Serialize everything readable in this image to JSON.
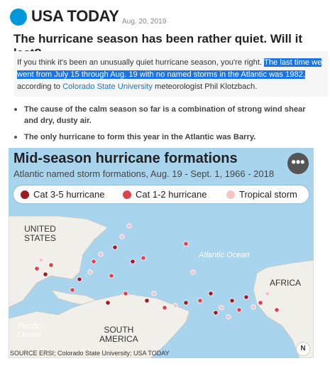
{
  "brand": {
    "name": "USA TODAY",
    "color": "#0098db",
    "date": "Aug. 20, 2019"
  },
  "article": {
    "headline": "The hurricane season has been rather quiet. Will it last?",
    "summary_pre": "If you think it's been an unusually quiet hurricane season, you're right. ",
    "summary_highlight": "The last time we went from July 15 through Aug. 19 with no named storms in the Atlantic was 1982,",
    "summary_mid": " according to ",
    "summary_link": "Colorado State University",
    "summary_post": " meteorologist Phil Klotzbach.",
    "bullets": [
      "The cause of the calm season so far is a combination of strong wind shear and dry, dusty air.",
      "The only hurricane to form this year in the Atlantic was Barry."
    ]
  },
  "map": {
    "title": "Mid-season hurricane formations",
    "subtitle": "Atlantic named storm formations, Aug. 19 - Sept. 1, 1966 - 2018",
    "more_icon": "more-dots-icon",
    "legend": [
      {
        "label": "Cat 3-5 hurricane",
        "color": "#9e1b24"
      },
      {
        "label": "Cat 1-2 hurricane",
        "color": "#e0404c"
      },
      {
        "label": "Tropical storm",
        "color": "#f5c4c8"
      }
    ],
    "labels": {
      "us": "UNITED\nSTATES",
      "atlantic": "Atlantic Ocean",
      "africa": "AFRICA",
      "south_america": "SOUTH\nAMERICA",
      "pacific": "Pacific\nOcean"
    },
    "source": "SOURCE ERSI; Colorado State University; USA TODAY",
    "north_label": "N",
    "ocean_color": "#a8d4ee",
    "land_color": "#f1efe9"
  }
}
